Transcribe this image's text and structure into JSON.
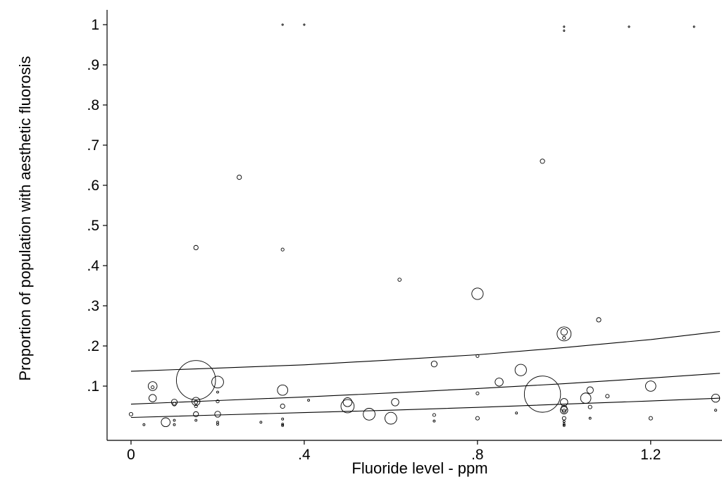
{
  "chart_data": {
    "type": "scatter",
    "title": "",
    "xlabel": "Fluoride level - ppm",
    "ylabel": "Proportion of population with aesthetic fluorosis",
    "xlim": [
      0,
      1.36
    ],
    "ylim": [
      0,
      1
    ],
    "x_ticks": [
      {
        "value": 0,
        "label": "0"
      },
      {
        "value": 0.4,
        "label": ".4"
      },
      {
        "value": 0.8,
        "label": ".8"
      },
      {
        "value": 1.2,
        "label": "1.2"
      }
    ],
    "y_ticks": [
      {
        "value": 0.1,
        "label": ".1"
      },
      {
        "value": 0.2,
        "label": ".2"
      },
      {
        "value": 0.3,
        "label": ".3"
      },
      {
        "value": 0.4,
        "label": ".4"
      },
      {
        "value": 0.5,
        "label": ".5"
      },
      {
        "value": 0.6,
        "label": ".6"
      },
      {
        "value": 0.7,
        "label": ".7"
      },
      {
        "value": 0.8,
        "label": ".8"
      },
      {
        "value": 0.9,
        "label": ".9"
      },
      {
        "value": 1,
        "label": "1"
      }
    ],
    "grid": false,
    "marker": "hollow circle, area proportional to study weight",
    "points": [
      {
        "x": 0.35,
        "y": 1.0,
        "w": 1
      },
      {
        "x": 0.4,
        "y": 1.0,
        "w": 1
      },
      {
        "x": 1.0,
        "y": 0.995,
        "w": 1
      },
      {
        "x": 1.0,
        "y": 0.985,
        "w": 1
      },
      {
        "x": 1.15,
        "y": 0.995,
        "w": 1
      },
      {
        "x": 1.3,
        "y": 0.995,
        "w": 1
      },
      {
        "x": 0.95,
        "y": 0.66,
        "w": 9
      },
      {
        "x": 0.25,
        "y": 0.62,
        "w": 9
      },
      {
        "x": 0.15,
        "y": 0.445,
        "w": 9
      },
      {
        "x": 0.35,
        "y": 0.44,
        "w": 4
      },
      {
        "x": 0.62,
        "y": 0.365,
        "w": 5
      },
      {
        "x": 0.8,
        "y": 0.33,
        "w": 60
      },
      {
        "x": 1.08,
        "y": 0.265,
        "w": 9
      },
      {
        "x": 1.0,
        "y": 0.23,
        "w": 90
      },
      {
        "x": 1.0,
        "y": 0.235,
        "w": 20
      },
      {
        "x": 1.0,
        "y": 0.22,
        "w": 4
      },
      {
        "x": 0.8,
        "y": 0.175,
        "w": 4
      },
      {
        "x": 0.7,
        "y": 0.155,
        "w": 16
      },
      {
        "x": 0.9,
        "y": 0.14,
        "w": 60
      },
      {
        "x": 0.85,
        "y": 0.11,
        "w": 30
      },
      {
        "x": 0.15,
        "y": 0.115,
        "w": 700
      },
      {
        "x": 0.2,
        "y": 0.11,
        "w": 64
      },
      {
        "x": 1.2,
        "y": 0.1,
        "w": 49
      },
      {
        "x": 0.05,
        "y": 0.1,
        "w": 36
      },
      {
        "x": 0.05,
        "y": 0.097,
        "w": 4
      },
      {
        "x": 0.35,
        "y": 0.09,
        "w": 49
      },
      {
        "x": 1.06,
        "y": 0.09,
        "w": 20
      },
      {
        "x": 0.95,
        "y": 0.08,
        "w": 600
      },
      {
        "x": 0.2,
        "y": 0.085,
        "w": 2
      },
      {
        "x": 0.8,
        "y": 0.082,
        "w": 4
      },
      {
        "x": 1.1,
        "y": 0.075,
        "w": 6
      },
      {
        "x": 1.05,
        "y": 0.07,
        "w": 49
      },
      {
        "x": 0.05,
        "y": 0.07,
        "w": 25
      },
      {
        "x": 1.35,
        "y": 0.07,
        "w": 30
      },
      {
        "x": 0.41,
        "y": 0.065,
        "w": 2
      },
      {
        "x": 0.15,
        "y": 0.062,
        "w": 30
      },
      {
        "x": 0.1,
        "y": 0.06,
        "w": 16
      },
      {
        "x": 0.1,
        "y": 0.055,
        "w": 6
      },
      {
        "x": 0.2,
        "y": 0.062,
        "w": 4
      },
      {
        "x": 0.61,
        "y": 0.06,
        "w": 25
      },
      {
        "x": 0.5,
        "y": 0.06,
        "w": 36
      },
      {
        "x": 1.0,
        "y": 0.06,
        "w": 25
      },
      {
        "x": 0.15,
        "y": 0.06,
        "w": 6
      },
      {
        "x": 0.5,
        "y": 0.05,
        "w": 80
      },
      {
        "x": 0.35,
        "y": 0.05,
        "w": 9
      },
      {
        "x": 0.15,
        "y": 0.05,
        "w": 4
      },
      {
        "x": 1.0,
        "y": 0.045,
        "w": 16
      },
      {
        "x": 1.06,
        "y": 0.048,
        "w": 6
      },
      {
        "x": 1.0,
        "y": 0.04,
        "w": 25
      },
      {
        "x": 1.0,
        "y": 0.038,
        "w": 6
      },
      {
        "x": 1.35,
        "y": 0.04,
        "w": 2
      },
      {
        "x": 0.55,
        "y": 0.03,
        "w": 64
      },
      {
        "x": 0.2,
        "y": 0.03,
        "w": 16
      },
      {
        "x": 0.15,
        "y": 0.03,
        "w": 12
      },
      {
        "x": 0.0,
        "y": 0.03,
        "w": 6
      },
      {
        "x": 0.7,
        "y": 0.028,
        "w": 4
      },
      {
        "x": 0.89,
        "y": 0.033,
        "w": 2
      },
      {
        "x": 0.6,
        "y": 0.02,
        "w": 64
      },
      {
        "x": 0.8,
        "y": 0.02,
        "w": 6
      },
      {
        "x": 1.2,
        "y": 0.02,
        "w": 6
      },
      {
        "x": 1.0,
        "y": 0.02,
        "w": 6
      },
      {
        "x": 1.06,
        "y": 0.02,
        "w": 2
      },
      {
        "x": 0.35,
        "y": 0.018,
        "w": 2
      },
      {
        "x": 0.15,
        "y": 0.015,
        "w": 2
      },
      {
        "x": 0.1,
        "y": 0.015,
        "w": 2
      },
      {
        "x": 0.7,
        "y": 0.013,
        "w": 2
      },
      {
        "x": 0.2,
        "y": 0.01,
        "w": 2
      },
      {
        "x": 0.3,
        "y": 0.01,
        "w": 2
      },
      {
        "x": 1.0,
        "y": 0.012,
        "w": 2
      },
      {
        "x": 0.08,
        "y": 0.01,
        "w": 36
      },
      {
        "x": 0.2,
        "y": 0.005,
        "w": 2
      },
      {
        "x": 0.35,
        "y": 0.005,
        "w": 2
      },
      {
        "x": 1.0,
        "y": 0.005,
        "w": 2
      },
      {
        "x": 0.1,
        "y": 0.004,
        "w": 2
      },
      {
        "x": 0.03,
        "y": 0.004,
        "w": 2
      },
      {
        "x": 0.35,
        "y": 0.002,
        "w": 2
      },
      {
        "x": 1.0,
        "y": 0.002,
        "w": 2
      }
    ],
    "series": [
      {
        "style": "fitted upper",
        "x": [
          0,
          0.2,
          0.4,
          0.6,
          0.8,
          1.0,
          1.2,
          1.36
        ],
        "y": [
          0.137,
          0.145,
          0.153,
          0.165,
          0.178,
          0.196,
          0.216,
          0.236
        ]
      },
      {
        "style": "fitted mid",
        "x": [
          0,
          0.2,
          0.4,
          0.6,
          0.8,
          1.0,
          1.2,
          1.36
        ],
        "y": [
          0.055,
          0.064,
          0.073,
          0.083,
          0.094,
          0.106,
          0.12,
          0.132
        ]
      },
      {
        "style": "fitted lower",
        "x": [
          0,
          0.2,
          0.4,
          0.6,
          0.8,
          1.0,
          1.2,
          1.36
        ],
        "y": [
          0.022,
          0.028,
          0.034,
          0.04,
          0.047,
          0.055,
          0.063,
          0.07
        ]
      }
    ]
  }
}
